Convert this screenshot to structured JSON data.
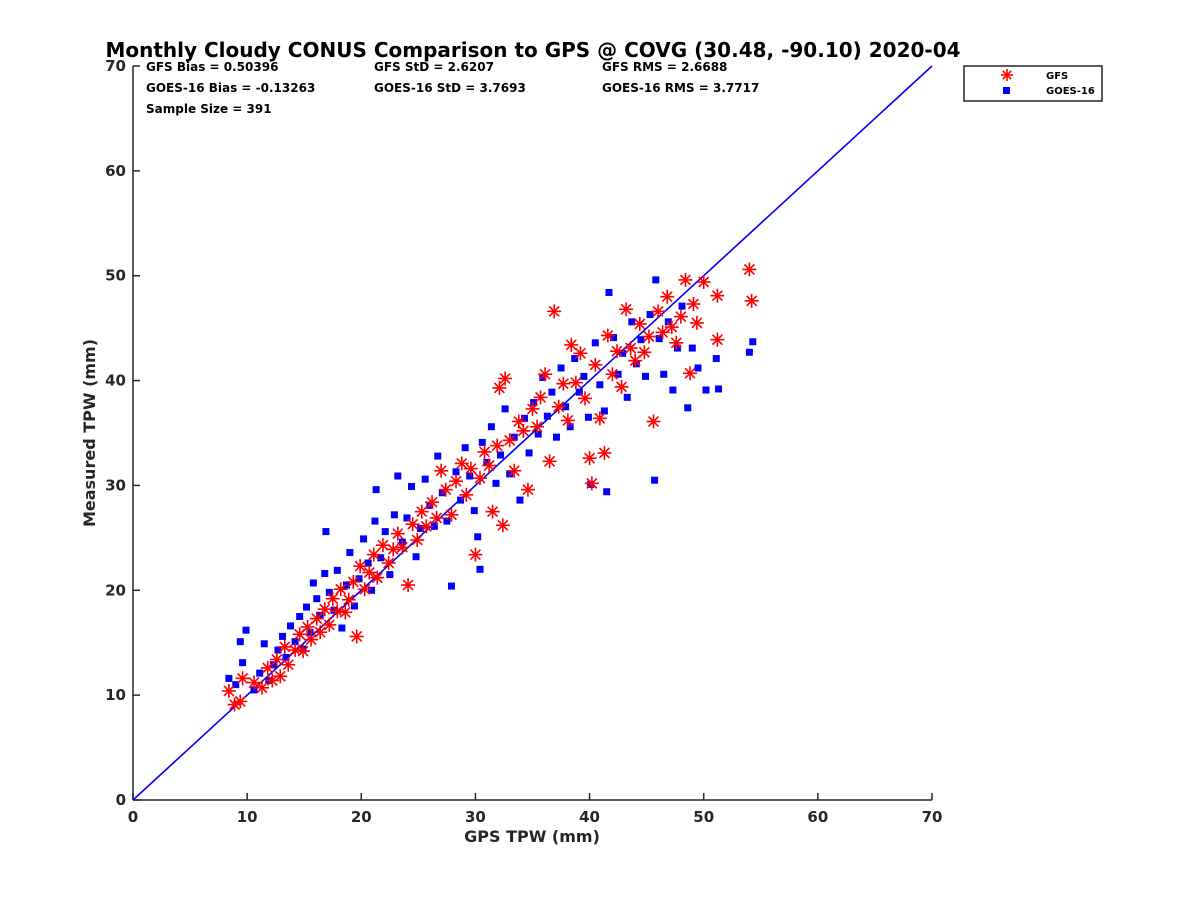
{
  "colors": {
    "gfs": "#ff0000",
    "goes": "#0000ff",
    "line": "#0000ff",
    "axis": "#262626"
  },
  "chart_data": {
    "type": "scatter",
    "title": "Monthly Cloudy CONUS Comparison to GPS @ COVG (30.48, -90.10) 2020-04",
    "xlabel": "GPS TPW (mm)",
    "ylabel": "Measured TPW (mm)",
    "xlim": [
      0,
      70
    ],
    "ylim": [
      0,
      70
    ],
    "xticks": [
      "0",
      "10",
      "20",
      "30",
      "40",
      "50",
      "60",
      "70"
    ],
    "yticks": [
      "0",
      "10",
      "20",
      "30",
      "40",
      "50",
      "60",
      "70"
    ],
    "grid": false,
    "legend_position": "outside-top-right",
    "reference_line": {
      "name": "1:1",
      "x": [
        0,
        70
      ],
      "y": [
        0,
        70
      ]
    },
    "stats": [
      [
        "GFS Bias = 0.50396",
        "GFS StD = 2.6207",
        "GFS RMS = 2.6688"
      ],
      [
        "GOES-16 Bias = -0.13263",
        "GOES-16 StD = 3.7693",
        "GOES-16 RMS = 3.7717"
      ],
      [
        "Sample Size = 391"
      ]
    ],
    "series": [
      {
        "name": "GFS",
        "marker": "asterisk",
        "points": [
          [
            8.4,
            10.4
          ],
          [
            8.9,
            9.1
          ],
          [
            9.4,
            9.4
          ],
          [
            9.6,
            11.6
          ],
          [
            10.6,
            11.2
          ],
          [
            11.3,
            10.7
          ],
          [
            11.8,
            12.6
          ],
          [
            12.2,
            11.4
          ],
          [
            12.6,
            13.4
          ],
          [
            12.9,
            11.8
          ],
          [
            13.3,
            14.6
          ],
          [
            13.6,
            12.9
          ],
          [
            14.2,
            14.3
          ],
          [
            14.6,
            15.8
          ],
          [
            14.9,
            14.2
          ],
          [
            15.3,
            16.5
          ],
          [
            15.6,
            15.3
          ],
          [
            16.1,
            17.3
          ],
          [
            16.4,
            16.0
          ],
          [
            16.8,
            18.2
          ],
          [
            17.2,
            16.7
          ],
          [
            17.5,
            19.2
          ],
          [
            17.9,
            18.0
          ],
          [
            18.2,
            20.1
          ],
          [
            18.6,
            17.9
          ],
          [
            18.9,
            19.1
          ],
          [
            19.3,
            20.8
          ],
          [
            19.6,
            15.6
          ],
          [
            19.9,
            22.3
          ],
          [
            20.3,
            20.1
          ],
          [
            20.7,
            21.7
          ],
          [
            21.1,
            23.4
          ],
          [
            21.4,
            21.2
          ],
          [
            21.9,
            24.3
          ],
          [
            22.4,
            22.6
          ],
          [
            22.8,
            23.9
          ],
          [
            23.2,
            25.4
          ],
          [
            23.6,
            24.1
          ],
          [
            24.1,
            20.5
          ],
          [
            24.5,
            26.3
          ],
          [
            24.9,
            24.8
          ],
          [
            25.3,
            27.5
          ],
          [
            25.7,
            26.1
          ],
          [
            26.2,
            28.4
          ],
          [
            26.6,
            26.9
          ],
          [
            27.0,
            31.4
          ],
          [
            27.4,
            29.6
          ],
          [
            27.9,
            27.2
          ],
          [
            28.3,
            30.4
          ],
          [
            28.8,
            32.1
          ],
          [
            29.2,
            29.1
          ],
          [
            29.6,
            31.6
          ],
          [
            30.0,
            23.4
          ],
          [
            30.4,
            30.7
          ],
          [
            30.8,
            33.2
          ],
          [
            31.2,
            31.9
          ],
          [
            31.5,
            27.5
          ],
          [
            31.9,
            33.8
          ],
          [
            32.1,
            39.3
          ],
          [
            32.4,
            26.2
          ],
          [
            32.6,
            40.2
          ],
          [
            33.0,
            34.3
          ],
          [
            33.4,
            31.4
          ],
          [
            33.8,
            36.1
          ],
          [
            34.2,
            35.2
          ],
          [
            34.6,
            29.6
          ],
          [
            35.0,
            37.3
          ],
          [
            35.4,
            35.6
          ],
          [
            35.7,
            38.4
          ],
          [
            36.1,
            40.6
          ],
          [
            36.5,
            32.3
          ],
          [
            36.9,
            46.6
          ],
          [
            37.3,
            37.5
          ],
          [
            37.7,
            39.7
          ],
          [
            38.1,
            36.2
          ],
          [
            38.4,
            43.4
          ],
          [
            38.8,
            39.8
          ],
          [
            39.2,
            42.6
          ],
          [
            39.6,
            38.3
          ],
          [
            40.0,
            32.6
          ],
          [
            40.2,
            30.2
          ],
          [
            40.5,
            41.5
          ],
          [
            40.9,
            36.4
          ],
          [
            41.3,
            33.1
          ],
          [
            41.6,
            44.3
          ],
          [
            42.0,
            40.6
          ],
          [
            42.4,
            42.8
          ],
          [
            42.8,
            39.4
          ],
          [
            43.2,
            46.8
          ],
          [
            43.6,
            43.1
          ],
          [
            44.0,
            41.9
          ],
          [
            44.4,
            45.4
          ],
          [
            44.8,
            42.7
          ],
          [
            45.2,
            44.2
          ],
          [
            45.6,
            36.1
          ],
          [
            46.0,
            46.6
          ],
          [
            46.4,
            44.6
          ],
          [
            46.8,
            48.0
          ],
          [
            47.2,
            45.1
          ],
          [
            47.6,
            43.6
          ],
          [
            48.0,
            46.1
          ],
          [
            48.4,
            49.6
          ],
          [
            48.8,
            40.7
          ],
          [
            49.1,
            47.3
          ],
          [
            49.4,
            45.5
          ],
          [
            50.0,
            49.4
          ],
          [
            51.2,
            48.1
          ],
          [
            51.2,
            43.9
          ],
          [
            54.0,
            50.6
          ],
          [
            54.2,
            47.6
          ]
        ]
      },
      {
        "name": "GOES-16",
        "marker": "square",
        "points": [
          [
            8.4,
            11.6
          ],
          [
            9.0,
            11.0
          ],
          [
            9.4,
            15.1
          ],
          [
            9.6,
            13.1
          ],
          [
            9.9,
            16.2
          ],
          [
            10.6,
            10.5
          ],
          [
            11.1,
            12.1
          ],
          [
            11.5,
            14.9
          ],
          [
            11.9,
            11.4
          ],
          [
            12.3,
            12.9
          ],
          [
            12.7,
            14.3
          ],
          [
            13.1,
            15.6
          ],
          [
            13.4,
            13.6
          ],
          [
            13.8,
            16.6
          ],
          [
            14.2,
            15.1
          ],
          [
            14.6,
            17.5
          ],
          [
            14.9,
            14.4
          ],
          [
            15.2,
            18.4
          ],
          [
            15.5,
            16.0
          ],
          [
            15.8,
            20.7
          ],
          [
            16.1,
            19.2
          ],
          [
            16.4,
            17.6
          ],
          [
            16.8,
            21.6
          ],
          [
            16.9,
            25.6
          ],
          [
            17.2,
            19.8
          ],
          [
            17.6,
            18.1
          ],
          [
            17.9,
            21.9
          ],
          [
            18.3,
            16.4
          ],
          [
            18.7,
            20.5
          ],
          [
            19.0,
            23.6
          ],
          [
            19.4,
            18.5
          ],
          [
            19.8,
            21.1
          ],
          [
            20.2,
            24.9
          ],
          [
            20.6,
            22.6
          ],
          [
            20.9,
            20.0
          ],
          [
            21.2,
            26.6
          ],
          [
            21.3,
            29.6
          ],
          [
            21.7,
            23.1
          ],
          [
            22.1,
            25.6
          ],
          [
            22.5,
            21.5
          ],
          [
            22.9,
            27.2
          ],
          [
            23.2,
            30.9
          ],
          [
            23.6,
            24.6
          ],
          [
            24.0,
            26.9
          ],
          [
            24.4,
            29.9
          ],
          [
            24.8,
            23.2
          ],
          [
            25.2,
            25.9
          ],
          [
            25.6,
            30.6
          ],
          [
            26.0,
            28.1
          ],
          [
            26.4,
            26.1
          ],
          [
            26.7,
            32.8
          ],
          [
            27.1,
            29.3
          ],
          [
            27.5,
            26.6
          ],
          [
            27.9,
            20.4
          ],
          [
            28.3,
            31.3
          ],
          [
            28.7,
            28.6
          ],
          [
            29.1,
            33.6
          ],
          [
            29.5,
            30.9
          ],
          [
            29.9,
            27.6
          ],
          [
            30.2,
            25.1
          ],
          [
            30.4,
            22.0
          ],
          [
            30.6,
            34.1
          ],
          [
            31.0,
            32.2
          ],
          [
            31.4,
            35.6
          ],
          [
            31.8,
            30.2
          ],
          [
            32.2,
            32.9
          ],
          [
            32.6,
            37.3
          ],
          [
            33.0,
            31.1
          ],
          [
            33.4,
            34.6
          ],
          [
            33.9,
            28.6
          ],
          [
            34.3,
            36.4
          ],
          [
            34.7,
            33.1
          ],
          [
            35.1,
            37.9
          ],
          [
            35.5,
            34.9
          ],
          [
            35.9,
            40.3
          ],
          [
            36.3,
            36.6
          ],
          [
            36.7,
            38.9
          ],
          [
            37.1,
            34.6
          ],
          [
            37.5,
            41.2
          ],
          [
            37.9,
            37.5
          ],
          [
            38.3,
            35.6
          ],
          [
            38.7,
            42.1
          ],
          [
            39.1,
            38.9
          ],
          [
            39.5,
            40.4
          ],
          [
            39.9,
            36.5
          ],
          [
            40.1,
            30.1
          ],
          [
            40.5,
            43.6
          ],
          [
            40.9,
            39.6
          ],
          [
            41.3,
            37.1
          ],
          [
            41.5,
            29.4
          ],
          [
            41.7,
            48.4
          ],
          [
            42.1,
            44.1
          ],
          [
            42.5,
            40.6
          ],
          [
            42.9,
            42.6
          ],
          [
            43.3,
            38.4
          ],
          [
            43.7,
            45.6
          ],
          [
            44.1,
            41.6
          ],
          [
            44.5,
            43.9
          ],
          [
            44.9,
            40.4
          ],
          [
            45.3,
            46.3
          ],
          [
            45.7,
            30.5
          ],
          [
            45.8,
            49.6
          ],
          [
            46.1,
            44.0
          ],
          [
            46.5,
            40.6
          ],
          [
            46.9,
            45.6
          ],
          [
            47.3,
            39.1
          ],
          [
            47.7,
            43.1
          ],
          [
            48.1,
            47.1
          ],
          [
            48.6,
            37.4
          ],
          [
            49.0,
            43.1
          ],
          [
            49.5,
            41.2
          ],
          [
            50.2,
            39.1
          ],
          [
            51.1,
            42.1
          ],
          [
            51.3,
            39.2
          ],
          [
            54.0,
            42.7
          ],
          [
            54.3,
            43.7
          ]
        ]
      }
    ]
  }
}
